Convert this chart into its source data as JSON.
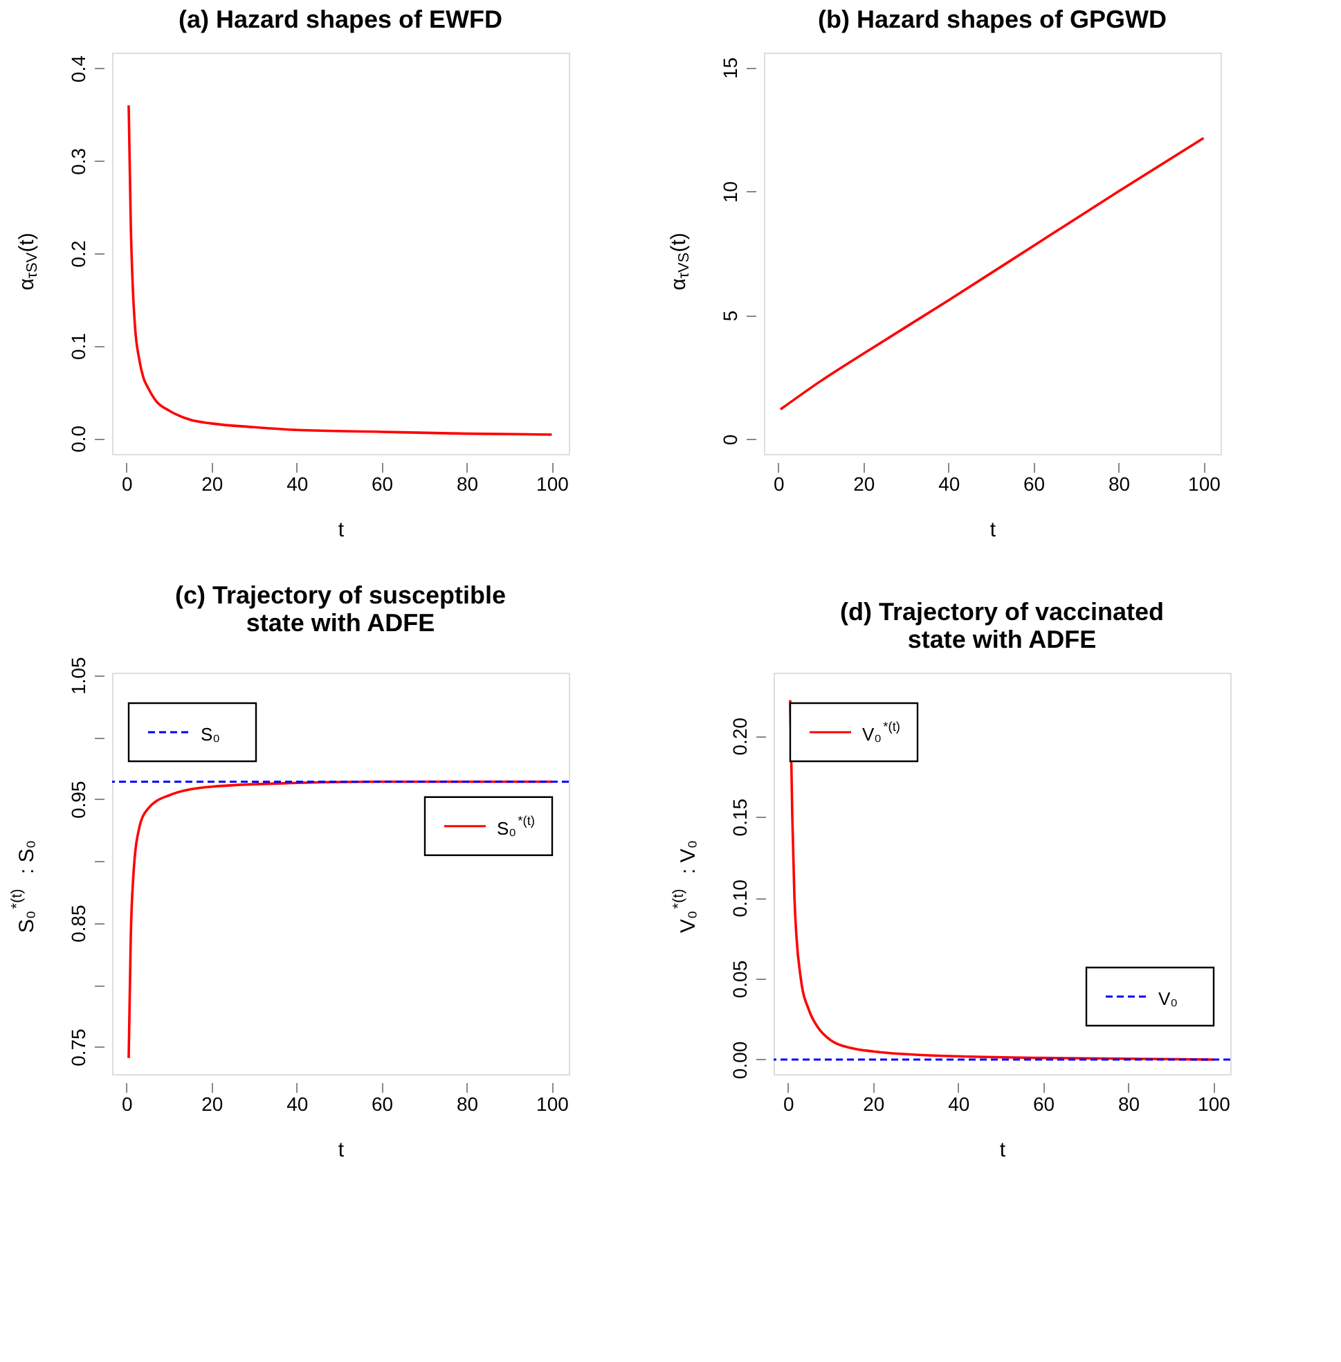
{
  "chart_data": [
    {
      "type": "line",
      "title": "(a) Hazard shapes of EWFD",
      "xlabel": "t",
      "ylabel": "α$_{τSV}$(t)",
      "xlim": [
        -3.4,
        104
      ],
      "xticks": [
        0,
        20,
        40,
        60,
        80,
        100
      ],
      "ylim": [
        -0.017,
        0.417
      ],
      "yticks": [
        {
          "value": 0.0,
          "label": "0.0"
        },
        0.1,
        0.2,
        0.3,
        0.4
      ],
      "grid": false,
      "series": [
        {
          "color": "#ff0000",
          "x": [
            0.5,
            1,
            1.5,
            2,
            3,
            4,
            5,
            7,
            10,
            15,
            20,
            30,
            40,
            60,
            80,
            100
          ],
          "values": [
            0.36,
            0.23,
            0.16,
            0.12,
            0.085,
            0.065,
            0.055,
            0.04,
            0.03,
            0.02,
            0.016,
            0.012,
            0.009,
            0.007,
            0.005,
            0.004
          ]
        }
      ]
    },
    {
      "type": "line",
      "title": "(b) Hazard shapes of GPGWD",
      "xlabel": "t",
      "ylabel": "α$_{τVS}$(t)",
      "xlim": [
        -3.4,
        104
      ],
      "xticks": [
        0,
        20,
        40,
        60,
        80,
        100
      ],
      "ylim": [
        -0.6,
        15.6
      ],
      "yticks": [
        0,
        5,
        10,
        15
      ],
      "grid": false,
      "series": [
        {
          "color": "#ff0000",
          "x": [
            0.5,
            10,
            20,
            40,
            60,
            80,
            100
          ],
          "values": [
            1.2,
            2.35,
            3.45,
            5.6,
            7.8,
            10.0,
            12.15
          ]
        }
      ]
    },
    {
      "type": "line",
      "title": "(c) Trajectory of susceptible state with ADFE",
      "xlabel": "t",
      "ylabel": "S₀$^{*(t)}$ : S₀",
      "xlim": [
        -3.4,
        104
      ],
      "xticks": [
        0,
        20,
        40,
        60,
        80,
        100
      ],
      "ylim": [
        0.728,
        1.052
      ],
      "yticks": [
        0.75,
        {
          "value": 0.8,
          "label": null
        },
        0.85,
        {
          "value": 0.9,
          "label": null
        },
        0.95,
        {
          "value": 1.0,
          "label": null
        },
        1.05
      ],
      "grid": false,
      "legend": "right",
      "series": [
        {
          "name": "S₀$^{*(t)}$",
          "color": "#ff0000",
          "x": [
            0.5,
            1,
            1.6,
            3,
            5,
            10,
            20,
            40,
            60,
            100
          ],
          "values": [
            0.741,
            0.84,
            0.888,
            0.927,
            0.942,
            0.953,
            0.96,
            0.963,
            0.964,
            0.964
          ]
        }
      ],
      "ref_lines": [
        {
          "axis": "y",
          "value": 0.964,
          "label": "S₀",
          "color": "#0000ff",
          "line_style": "dashed"
        }
      ]
    },
    {
      "type": "line",
      "title": "(d) Trajectory of vaccinated state with ADFE",
      "xlabel": "t",
      "ylabel": "V₀$^{*(t)}$ : V₀",
      "xlim": [
        -3.4,
        104
      ],
      "xticks": [
        0,
        20,
        40,
        60,
        80,
        100
      ],
      "ylim": [
        -0.009,
        0.239
      ],
      "yticks": [
        {
          "value": 0.0,
          "label": "0.00"
        },
        0.05,
        {
          "value": 0.1,
          "label": "0.10"
        },
        0.15,
        {
          "value": 0.2,
          "label": "0.20"
        }
      ],
      "grid": false,
      "legend": "top left",
      "series": [
        {
          "name": "V₀$^{*(t)}$",
          "color": "#ff0000",
          "x": [
            0.5,
            1,
            1.5,
            2,
            3,
            5,
            7,
            10,
            15,
            20,
            30,
            40,
            60,
            100
          ],
          "values": [
            0.222,
            0.15,
            0.1,
            0.075,
            0.05,
            0.03,
            0.02,
            0.012,
            0.007,
            0.005,
            0.003,
            0.002,
            0.001,
            0.0
          ]
        }
      ],
      "ref_lines": [
        {
          "axis": "y",
          "value": 0.0,
          "label": "V₀",
          "color": "#0000ff",
          "line_style": "dashed"
        }
      ]
    }
  ]
}
